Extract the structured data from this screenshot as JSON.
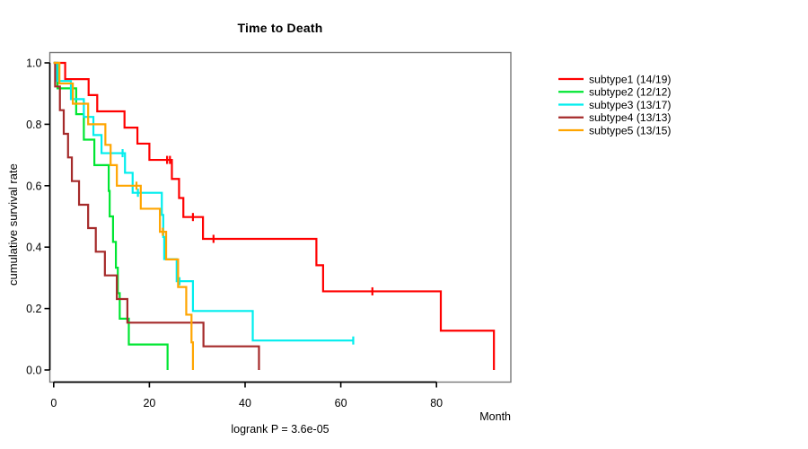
{
  "title": "Time to Death",
  "caption": "logrank P = 3.6e-05",
  "x_axis": {
    "label": "Month",
    "tick_labels": [
      "0",
      "20",
      "40",
      "60",
      "80"
    ],
    "tick_values": [
      0,
      20,
      40,
      60,
      80
    ]
  },
  "y_axis": {
    "label": "cumulative survival rate",
    "tick_labels": [
      "0.0",
      "0.2",
      "0.4",
      "0.6",
      "0.8",
      "1.0"
    ],
    "tick_values": [
      0,
      0.2,
      0.4,
      0.6,
      0.8,
      1
    ]
  },
  "legend": {
    "position": "right",
    "items": [
      {
        "label": "subtype1 (14/19)",
        "color": "#FF0000"
      },
      {
        "label": "subtype2 (12/12)",
        "color": "#00E632"
      },
      {
        "label": "subtype3 (13/17)",
        "color": "#00EEEE"
      },
      {
        "label": "subtype4 (13/13)",
        "color": "#A52A2A"
      },
      {
        "label": "subtype5 (13/15)",
        "color": "#FFA500"
      }
    ]
  },
  "chart_data": {
    "type": "line",
    "variant": "kaplan-meier-step",
    "title": "Time to Death",
    "xlabel": "Month",
    "ylabel": "cumulative survival rate",
    "annotation": "logrank P = 3.6e-05",
    "xlim": [
      0,
      96
    ],
    "ylim": [
      0,
      1
    ],
    "grid": false,
    "legend_position": "right-outside",
    "series": [
      {
        "name": "subtype1 (14/19)",
        "color": "#FF0000",
        "n_total": 19,
        "n_events": 14,
        "steps": [
          [
            0,
            1
          ],
          [
            2.4,
            0.947
          ],
          [
            7.3,
            0.895
          ],
          [
            9.1,
            0.842
          ],
          [
            14.8,
            0.789
          ],
          [
            17.5,
            0.737
          ],
          [
            20,
            0.684
          ],
          [
            24.7,
            0.622
          ],
          [
            26.2,
            0.56
          ],
          [
            27.1,
            0.498
          ],
          [
            31.2,
            0.427
          ],
          [
            54.9,
            0.341
          ],
          [
            56.3,
            0.256
          ],
          [
            80.9,
            0.128
          ],
          [
            92,
            0
          ]
        ],
        "censor_marks": [
          [
            23.7,
            0.684
          ],
          [
            24.3,
            0.684
          ],
          [
            29.1,
            0.498
          ],
          [
            33.4,
            0.427
          ],
          [
            66.6,
            0.256
          ]
        ],
        "end_time": 92
      },
      {
        "name": "subtype2 (12/12)",
        "color": "#00E632",
        "n_total": 12,
        "n_events": 12,
        "steps": [
          [
            0,
            1
          ],
          [
            0.8,
            0.917
          ],
          [
            4.7,
            0.833
          ],
          [
            6.3,
            0.75
          ],
          [
            8.5,
            0.667
          ],
          [
            11.5,
            0.583
          ],
          [
            11.7,
            0.5
          ],
          [
            12.4,
            0.417
          ],
          [
            13,
            0.333
          ],
          [
            13.4,
            0.25
          ],
          [
            13.8,
            0.167
          ],
          [
            15.7,
            0.083
          ],
          [
            23.8,
            0
          ]
        ],
        "censor_marks": [],
        "end_time": 23.8
      },
      {
        "name": "subtype3 (13/17)",
        "color": "#00EEEE",
        "n_total": 17,
        "n_events": 13,
        "steps": [
          [
            0,
            1
          ],
          [
            0.7,
            0.941
          ],
          [
            3.6,
            0.882
          ],
          [
            6.3,
            0.824
          ],
          [
            8.3,
            0.765
          ],
          [
            10,
            0.706
          ],
          [
            14.9,
            0.642
          ],
          [
            16.5,
            0.577
          ],
          [
            22.6,
            0.505
          ],
          [
            22.9,
            0.433
          ],
          [
            23.1,
            0.361
          ],
          [
            25.7,
            0.289
          ],
          [
            29.1,
            0.192
          ],
          [
            41.6,
            0.096
          ]
        ],
        "censor_marks": [
          [
            14.4,
            0.706
          ],
          [
            17.6,
            0.577
          ],
          [
            26.3,
            0.289
          ],
          [
            62.6,
            0.096
          ]
        ],
        "end_time": 62.6
      },
      {
        "name": "subtype4 (13/13)",
        "color": "#A52A2A",
        "n_total": 13,
        "n_events": 13,
        "steps": [
          [
            0,
            1
          ],
          [
            0.3,
            0.923
          ],
          [
            1.3,
            0.846
          ],
          [
            2.1,
            0.769
          ],
          [
            3,
            0.692
          ],
          [
            3.8,
            0.615
          ],
          [
            5.3,
            0.538
          ],
          [
            7.2,
            0.462
          ],
          [
            8.8,
            0.385
          ],
          [
            10.7,
            0.308
          ],
          [
            13.2,
            0.231
          ],
          [
            15.4,
            0.154
          ],
          [
            31.3,
            0.077
          ],
          [
            42.9,
            0
          ]
        ],
        "censor_marks": [],
        "end_time": 42.9
      },
      {
        "name": "subtype5 (13/15)",
        "color": "#FFA500",
        "n_total": 15,
        "n_events": 13,
        "steps": [
          [
            0,
            1
          ],
          [
            1.2,
            0.933
          ],
          [
            4,
            0.867
          ],
          [
            7.2,
            0.8
          ],
          [
            10.8,
            0.733
          ],
          [
            11.9,
            0.667
          ],
          [
            13.2,
            0.6
          ],
          [
            18.2,
            0.525
          ],
          [
            22.2,
            0.45
          ],
          [
            23.5,
            0.36
          ],
          [
            26,
            0.27
          ],
          [
            27.7,
            0.18
          ],
          [
            28.8,
            0.09
          ],
          [
            29.1,
            0
          ]
        ],
        "censor_marks": [
          [
            17.3,
            0.6
          ],
          [
            22.8,
            0.45
          ]
        ],
        "end_time": 29.1
      }
    ]
  }
}
